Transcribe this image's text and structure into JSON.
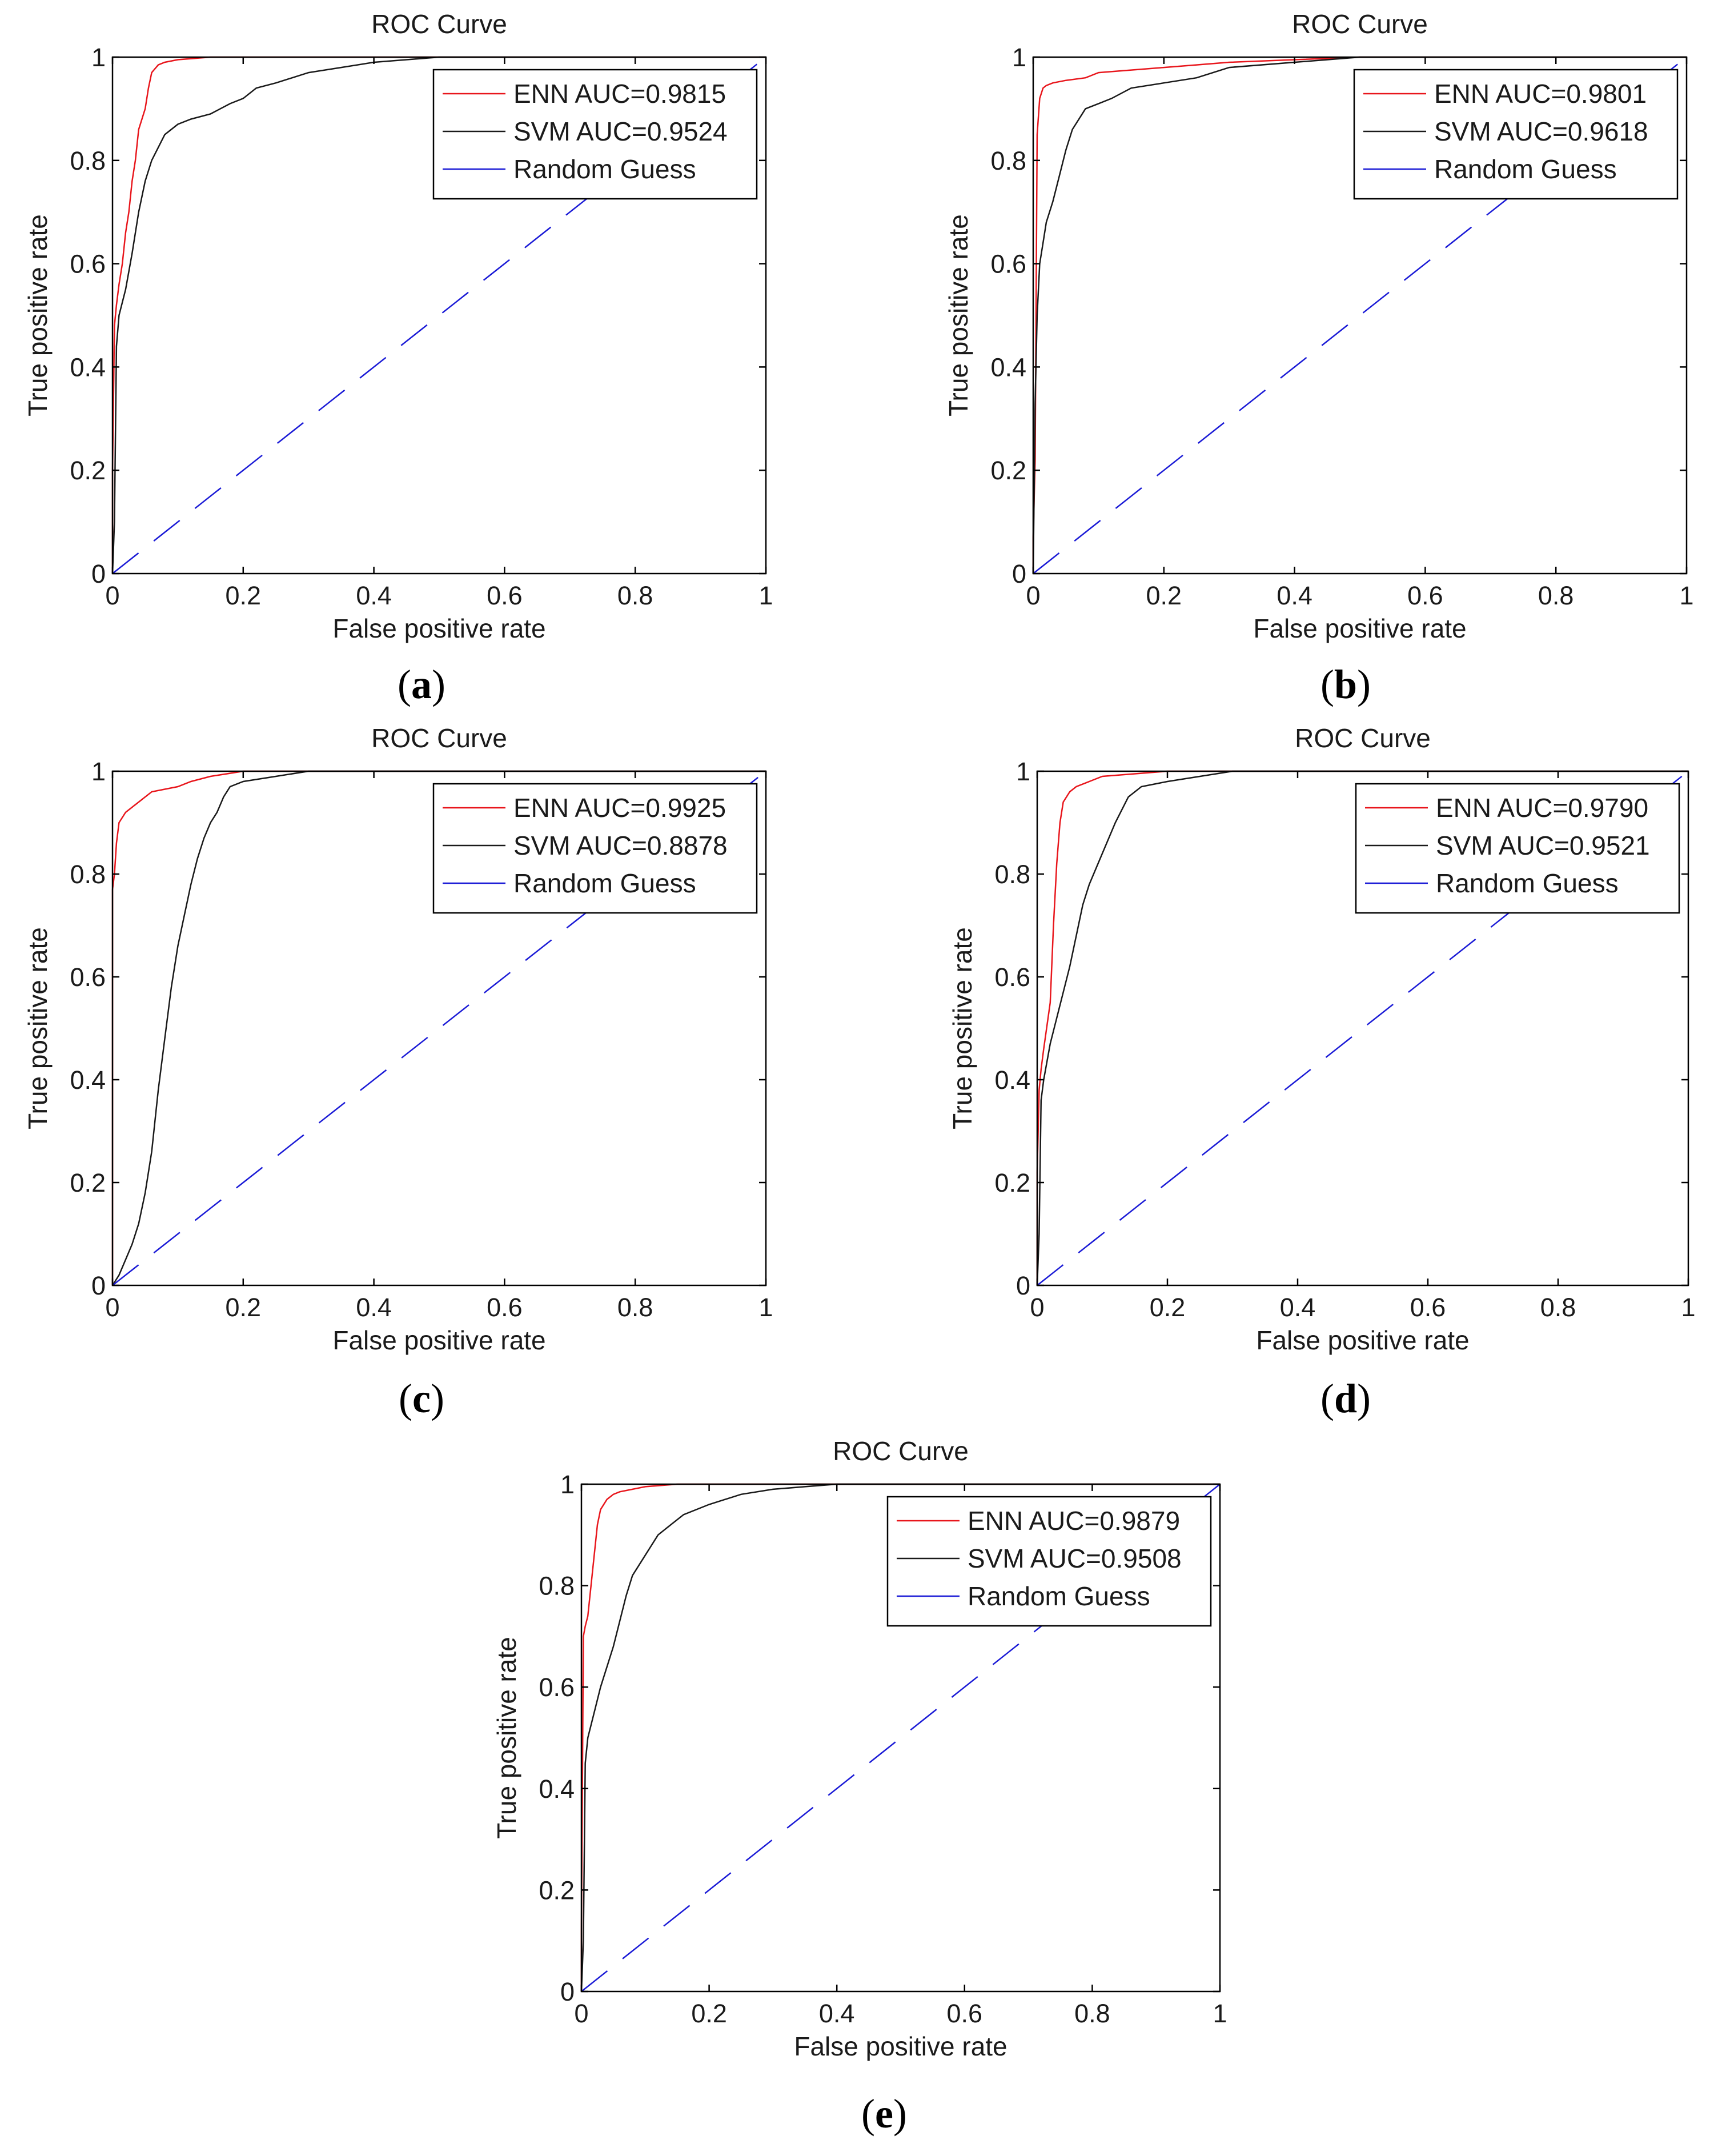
{
  "colors": {
    "enn": "#e8161c",
    "svm": "#1a1a1a",
    "random": "#1a1ad6"
  },
  "chart_data": [
    {
      "panel": "a",
      "type": "line",
      "title": "ROC Curve",
      "xlabel": "False positive rate",
      "ylabel": "True positive rate",
      "xlim": [
        0,
        1
      ],
      "ylim": [
        0,
        1
      ],
      "xticks": [
        "0",
        "0.2",
        "0.4",
        "0.6",
        "0.8",
        "1"
      ],
      "yticks": [
        "0",
        "0.2",
        "0.4",
        "0.6",
        "0.8",
        "1"
      ],
      "grid": false,
      "legend_position": "top-right",
      "series": [
        {
          "name": "ENN AUC=0.9815",
          "style": "solid",
          "x": [
            0,
            0,
            0.003,
            0.006,
            0.01,
            0.015,
            0.02,
            0.025,
            0.03,
            0.035,
            0.04,
            0.05,
            0.055,
            0.06,
            0.07,
            0.08,
            0.1,
            0.15,
            0.2,
            0.3,
            0.4,
            0.5,
            1
          ],
          "y": [
            0,
            0.2,
            0.48,
            0.52,
            0.56,
            0.6,
            0.66,
            0.7,
            0.76,
            0.8,
            0.86,
            0.9,
            0.94,
            0.97,
            0.985,
            0.99,
            0.995,
            1,
            1,
            1,
            1,
            1,
            1
          ]
        },
        {
          "name": "SVM AUC=0.9524",
          "style": "solid",
          "x": [
            0,
            0.003,
            0.006,
            0.01,
            0.02,
            0.03,
            0.04,
            0.05,
            0.06,
            0.08,
            0.1,
            0.12,
            0.15,
            0.18,
            0.2,
            0.22,
            0.25,
            0.3,
            0.35,
            0.4,
            0.5,
            0.6,
            1
          ],
          "y": [
            0,
            0.1,
            0.44,
            0.5,
            0.55,
            0.62,
            0.7,
            0.76,
            0.8,
            0.85,
            0.87,
            0.88,
            0.89,
            0.91,
            0.92,
            0.94,
            0.95,
            0.97,
            0.98,
            0.99,
            1,
            1,
            1
          ]
        },
        {
          "name": "Random Guess",
          "style": "dashed",
          "x": [
            0,
            1
          ],
          "y": [
            0,
            1
          ]
        }
      ]
    },
    {
      "panel": "b",
      "type": "line",
      "title": "ROC Curve",
      "xlabel": "False positive rate",
      "ylabel": "True positive rate",
      "xlim": [
        0,
        1
      ],
      "ylim": [
        0,
        1
      ],
      "xticks": [
        "0",
        "0.2",
        "0.4",
        "0.6",
        "0.8",
        "1"
      ],
      "yticks": [
        "0",
        "0.2",
        "0.4",
        "0.6",
        "0.8",
        "1"
      ],
      "grid": false,
      "legend_position": "top-right",
      "series": [
        {
          "name": "ENN AUC=0.9801",
          "style": "solid",
          "x": [
            0,
            0,
            0.003,
            0.006,
            0.01,
            0.015,
            0.02,
            0.03,
            0.05,
            0.08,
            0.1,
            0.15,
            0.2,
            0.25,
            0.3,
            0.4,
            0.5,
            0.6,
            1
          ],
          "y": [
            0,
            0.07,
            0.22,
            0.85,
            0.92,
            0.94,
            0.945,
            0.95,
            0.955,
            0.96,
            0.97,
            0.975,
            0.98,
            0.985,
            0.99,
            0.995,
            1,
            1,
            1
          ]
        },
        {
          "name": "SVM AUC=0.9618",
          "style": "solid",
          "x": [
            0,
            0.003,
            0.006,
            0.01,
            0.015,
            0.02,
            0.03,
            0.04,
            0.05,
            0.06,
            0.08,
            0.1,
            0.12,
            0.15,
            0.2,
            0.25,
            0.3,
            0.4,
            0.5,
            1
          ],
          "y": [
            0,
            0.33,
            0.5,
            0.6,
            0.64,
            0.68,
            0.72,
            0.77,
            0.82,
            0.86,
            0.9,
            0.91,
            0.92,
            0.94,
            0.95,
            0.96,
            0.98,
            0.99,
            1,
            1
          ]
        },
        {
          "name": "Random Guess",
          "style": "dashed",
          "x": [
            0,
            1
          ],
          "y": [
            0,
            1
          ]
        }
      ]
    },
    {
      "panel": "c",
      "type": "line",
      "title": "ROC Curve",
      "xlabel": "False positive rate",
      "ylabel": "True positive rate",
      "xlim": [
        0,
        1
      ],
      "ylim": [
        0,
        1
      ],
      "xticks": [
        "0",
        "0.2",
        "0.4",
        "0.6",
        "0.8",
        "1"
      ],
      "yticks": [
        "0",
        "0.2",
        "0.4",
        "0.6",
        "0.8",
        "1"
      ],
      "grid": false,
      "legend_position": "top-right",
      "series": [
        {
          "name": "ENN AUC=0.9925",
          "style": "solid",
          "x": [
            0,
            0,
            0.003,
            0.006,
            0.01,
            0.02,
            0.03,
            0.04,
            0.05,
            0.06,
            0.08,
            0.1,
            0.12,
            0.15,
            0.2,
            0.3,
            0.5,
            1
          ],
          "y": [
            0,
            0.77,
            0.8,
            0.86,
            0.9,
            0.92,
            0.93,
            0.94,
            0.95,
            0.96,
            0.965,
            0.97,
            0.98,
            0.99,
            1,
            1,
            1,
            1
          ]
        },
        {
          "name": "SVM AUC=0.8878",
          "style": "solid",
          "x": [
            0,
            0.01,
            0.02,
            0.03,
            0.04,
            0.05,
            0.06,
            0.07,
            0.08,
            0.09,
            0.1,
            0.11,
            0.12,
            0.13,
            0.14,
            0.15,
            0.16,
            0.17,
            0.18,
            0.2,
            0.25,
            0.3,
            1
          ],
          "y": [
            0,
            0.02,
            0.05,
            0.08,
            0.12,
            0.18,
            0.26,
            0.38,
            0.48,
            0.58,
            0.66,
            0.72,
            0.78,
            0.83,
            0.87,
            0.9,
            0.92,
            0.95,
            0.97,
            0.98,
            0.99,
            1,
            1
          ]
        },
        {
          "name": "Random Guess",
          "style": "dashed",
          "x": [
            0,
            1
          ],
          "y": [
            0,
            1
          ]
        }
      ]
    },
    {
      "panel": "d",
      "type": "line",
      "title": "ROC Curve",
      "xlabel": "False positive rate",
      "ylabel": "True positive rate",
      "xlim": [
        0,
        1
      ],
      "ylim": [
        0,
        1
      ],
      "xticks": [
        "0",
        "0.2",
        "0.4",
        "0.6",
        "0.8",
        "1"
      ],
      "yticks": [
        "0",
        "0.2",
        "0.4",
        "0.6",
        "0.8",
        "1"
      ],
      "grid": false,
      "legend_position": "top-right",
      "series": [
        {
          "name": "ENN AUC=0.9790",
          "style": "solid",
          "x": [
            0,
            0,
            0.003,
            0.006,
            0.01,
            0.02,
            0.025,
            0.03,
            0.035,
            0.04,
            0.05,
            0.06,
            0.08,
            0.1,
            0.15,
            0.2,
            0.3,
            0.5,
            1
          ],
          "y": [
            0,
            0.22,
            0.38,
            0.42,
            0.46,
            0.55,
            0.7,
            0.82,
            0.9,
            0.94,
            0.96,
            0.97,
            0.98,
            0.99,
            0.995,
            1,
            1,
            1,
            1
          ]
        },
        {
          "name": "SVM AUC=0.9521",
          "style": "solid",
          "x": [
            0,
            0.003,
            0.006,
            0.01,
            0.02,
            0.03,
            0.04,
            0.05,
            0.06,
            0.07,
            0.08,
            0.1,
            0.12,
            0.14,
            0.16,
            0.2,
            0.25,
            0.3,
            0.4,
            1
          ],
          "y": [
            0,
            0.1,
            0.36,
            0.4,
            0.47,
            0.52,
            0.57,
            0.62,
            0.68,
            0.74,
            0.78,
            0.84,
            0.9,
            0.95,
            0.97,
            0.98,
            0.99,
            1,
            1,
            1
          ]
        },
        {
          "name": "Random Guess",
          "style": "dashed",
          "x": [
            0,
            1
          ],
          "y": [
            0,
            1
          ]
        }
      ]
    },
    {
      "panel": "e",
      "type": "line",
      "title": "ROC Curve",
      "xlabel": "False positive rate",
      "ylabel": "True positive rate",
      "xlim": [
        0,
        1
      ],
      "ylim": [
        0,
        1
      ],
      "xticks": [
        "0",
        "0.2",
        "0.4",
        "0.6",
        "0.8",
        "1"
      ],
      "yticks": [
        "0",
        "0.2",
        "0.4",
        "0.6",
        "0.8",
        "1"
      ],
      "grid": false,
      "legend_position": "top-right",
      "series": [
        {
          "name": "ENN AUC=0.9879",
          "style": "solid",
          "x": [
            0,
            0,
            0.003,
            0.006,
            0.01,
            0.015,
            0.02,
            0.025,
            0.03,
            0.04,
            0.05,
            0.06,
            0.08,
            0.1,
            0.15,
            0.2,
            0.3,
            0.4,
            1
          ],
          "y": [
            0,
            0.12,
            0.7,
            0.72,
            0.74,
            0.8,
            0.86,
            0.92,
            0.95,
            0.97,
            0.98,
            0.985,
            0.99,
            0.995,
            1,
            1,
            1,
            1,
            1
          ]
        },
        {
          "name": "SVM AUC=0.9508",
          "style": "solid",
          "x": [
            0,
            0.003,
            0.006,
            0.01,
            0.02,
            0.03,
            0.04,
            0.05,
            0.06,
            0.07,
            0.08,
            0.1,
            0.12,
            0.14,
            0.16,
            0.2,
            0.25,
            0.3,
            0.35,
            0.4,
            1
          ],
          "y": [
            0,
            0.1,
            0.45,
            0.5,
            0.55,
            0.6,
            0.64,
            0.68,
            0.73,
            0.78,
            0.82,
            0.86,
            0.9,
            0.92,
            0.94,
            0.96,
            0.98,
            0.99,
            0.995,
            1,
            1
          ]
        },
        {
          "name": "Random Guess",
          "style": "dashed",
          "x": [
            0,
            1
          ],
          "y": [
            0,
            1
          ]
        }
      ]
    }
  ]
}
